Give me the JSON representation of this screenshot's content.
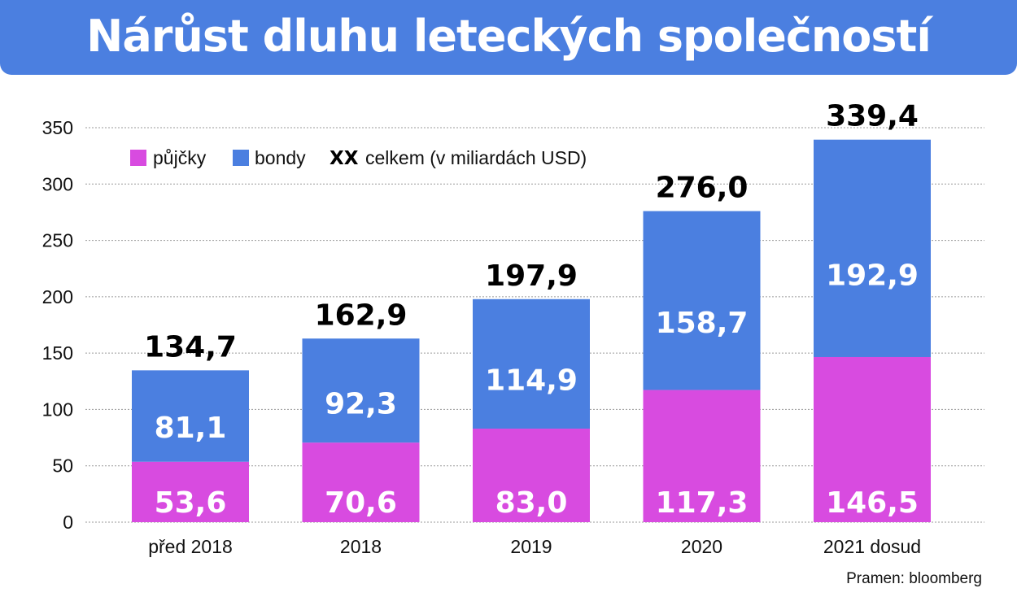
{
  "chart_data": {
    "type": "bar",
    "stacked": true,
    "title": "Nárůst dluhu leteckých společností",
    "categories": [
      "před 2018",
      "2018",
      "2019",
      "2020",
      "2021 dosud"
    ],
    "series": [
      {
        "name": "půjčky",
        "color": "#d84be0",
        "values": [
          53.6,
          70.6,
          83.0,
          117.3,
          146.5
        ],
        "labels": [
          "53,6",
          "70,6",
          "83,0",
          "117,3",
          "146,5"
        ]
      },
      {
        "name": "bondy",
        "color": "#4b7fe0",
        "values": [
          81.1,
          92.3,
          114.9,
          158.7,
          192.9
        ],
        "labels": [
          "81,1",
          "92,3",
          "114,9",
          "158,7",
          "192,9"
        ]
      }
    ],
    "totals": [
      134.7,
      162.9,
      197.9,
      276.0,
      339.4
    ],
    "total_labels": [
      "134,7",
      "162,9",
      "197,9",
      "276,0",
      "339,4"
    ],
    "yticks": [
      0,
      50,
      100,
      150,
      200,
      250,
      300,
      350
    ],
    "ylim": [
      0,
      350
    ],
    "grid": "horizontal dotted",
    "legend": {
      "placement": "top-left",
      "items": [
        "půjčky",
        "bondy"
      ],
      "total_marker": "XX",
      "total_text": "celkem (v miliardách USD)"
    },
    "source": "Pramen: bloomberg"
  }
}
